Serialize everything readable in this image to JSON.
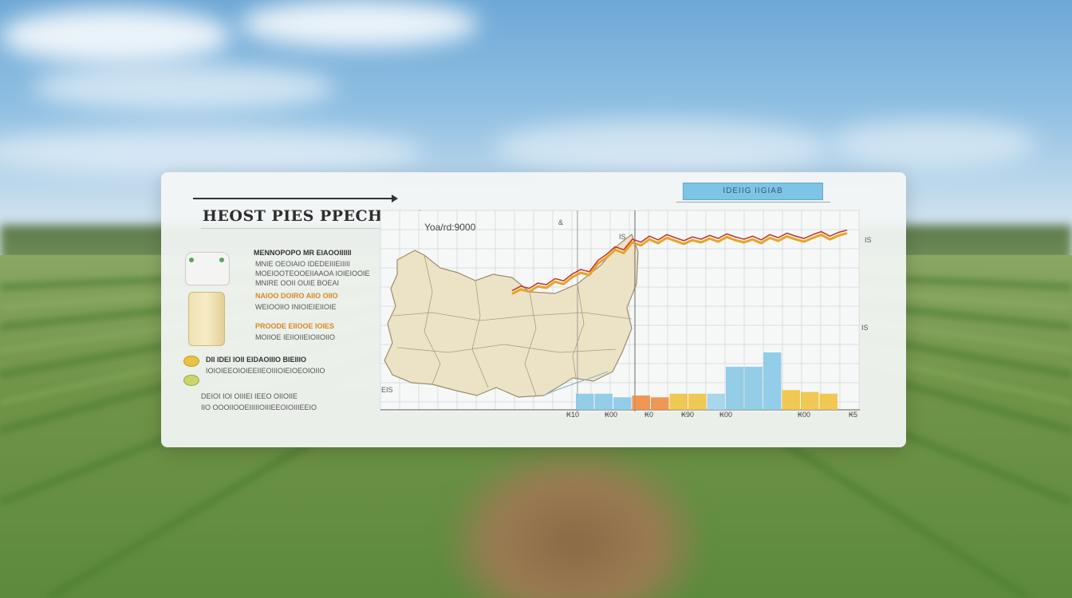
{
  "colors": {
    "accent_blue": "#7ec4e4",
    "sky_top": "#6ea8d6",
    "field_green": "#6f9447",
    "series_orange": "#e9a326",
    "series_red": "#c0392b"
  },
  "card": {
    "title": "HEOST PIES PPECHIRTS",
    "badge": "IDEIIG IIGIAB",
    "chart_title": "Yoa/rd:9000",
    "legend": [
      "MENNOPOPO MR EIAOOIIIIII",
      "MNIE OEOIAIO IDEDEIIIEIIIII",
      "MOEIOOTEOOEIIAAOA IOIEIOOIE",
      "MNIRE OOII OUIE BOEAI",
      "NAIOO DOIRO AIIO OIIO",
      "WEIOOIIO INIOIEIEIIOIE",
      "PROODE EIIOOE IOIES",
      "MOIIOE IEIIOIIEIOIIOIIO",
      "DII IDEI IOII EIDAOIIIO BIEIIIO",
      "IOIOIEEOIOIEEIIEOIIIOIEIOEOIOIIO",
      "DEIOI IOI OIIIEI IEEO OIIOIIE",
      "IIO OOOIIOOEIIIIIOIIIEEOIOIIIEEIO"
    ],
    "side_marks": [
      "&",
      "IS",
      "IS",
      "EIS",
      "IS"
    ]
  },
  "icons": [
    "dispenser-icon",
    "jar-icon",
    "coin-icon",
    "leaf-coin-icon",
    "arrow-right-icon"
  ],
  "chart_data": {
    "type": "line",
    "x_ticks": [
      "₭10",
      "₭00",
      "₭0",
      "₭90",
      "₭00",
      "₭00",
      "₭5"
    ],
    "line_values": [
      12,
      18,
      15,
      22,
      20,
      28,
      25,
      34,
      40,
      37,
      52,
      60,
      70,
      66,
      80,
      76,
      84,
      79,
      86,
      82,
      78,
      83,
      80,
      85,
      81,
      87,
      83,
      80,
      84,
      79,
      86,
      82,
      88,
      84,
      81,
      86,
      90,
      84,
      89,
      92
    ],
    "bars": [
      {
        "value": 18,
        "color": "#89c8e6"
      },
      {
        "value": 18,
        "color": "#89c8e6"
      },
      {
        "value": 14,
        "color": "#89c8e6"
      },
      {
        "value": 16,
        "color": "#f08c43"
      },
      {
        "value": 14,
        "color": "#f08c43"
      },
      {
        "value": 18,
        "color": "#f0c241"
      },
      {
        "value": 18,
        "color": "#f0c241"
      },
      {
        "value": 18,
        "color": "#a2d2ea"
      },
      {
        "value": 48,
        "color": "#89c8e6"
      },
      {
        "value": 48,
        "color": "#89c8e6"
      },
      {
        "value": 64,
        "color": "#89c8e6"
      },
      {
        "value": 22,
        "color": "#f0c241"
      },
      {
        "value": 20,
        "color": "#f0c241"
      },
      {
        "value": 18,
        "color": "#f0c241"
      }
    ]
  }
}
